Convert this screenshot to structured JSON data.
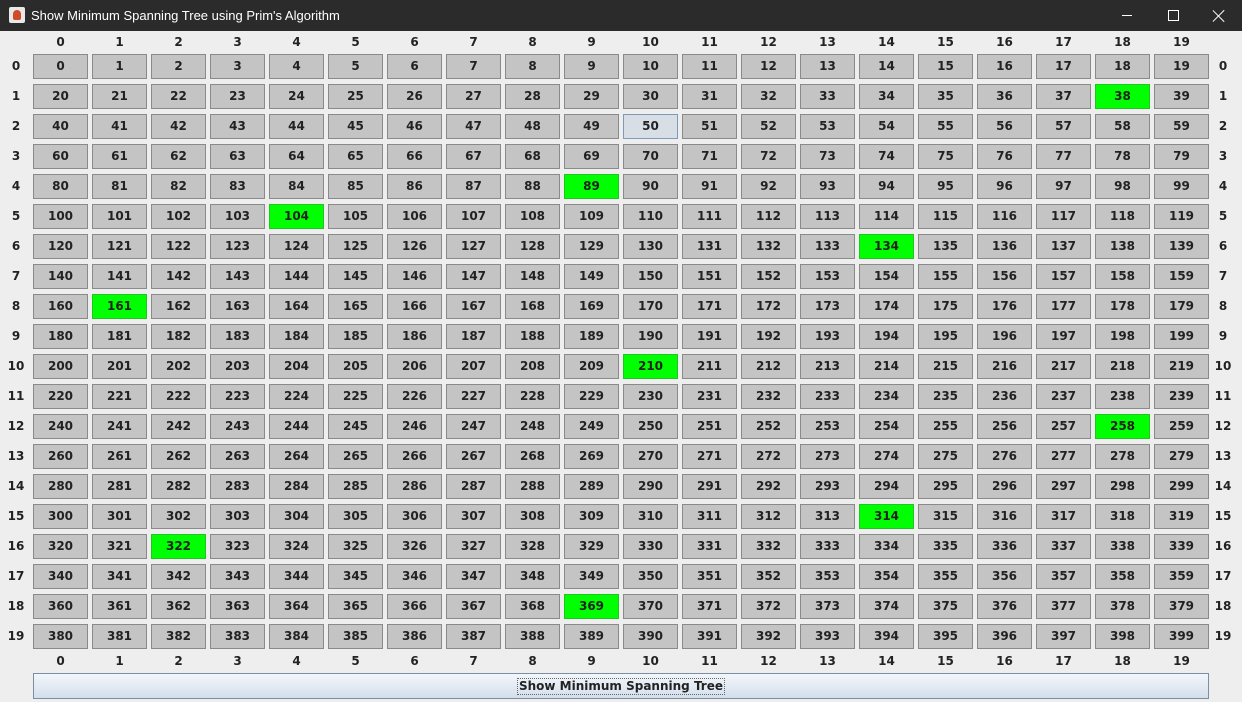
{
  "window": {
    "title": "Show Minimum Spanning Tree using Prim's Algorithm",
    "icon": "java-cup-icon",
    "controls": [
      "minimize",
      "maximize",
      "close"
    ]
  },
  "grid": {
    "rows": 20,
    "cols": 20,
    "column_labels": [
      "0",
      "1",
      "2",
      "3",
      "4",
      "5",
      "6",
      "7",
      "8",
      "9",
      "10",
      "11",
      "12",
      "13",
      "14",
      "15",
      "16",
      "17",
      "18",
      "19"
    ],
    "row_labels": [
      "0",
      "1",
      "2",
      "3",
      "4",
      "5",
      "6",
      "7",
      "8",
      "9",
      "10",
      "11",
      "12",
      "13",
      "14",
      "15",
      "16",
      "17",
      "18",
      "19"
    ],
    "cells": [
      [
        "0",
        "1",
        "2",
        "3",
        "4",
        "5",
        "6",
        "7",
        "8",
        "9",
        "10",
        "11",
        "12",
        "13",
        "14",
        "15",
        "16",
        "17",
        "18",
        "19"
      ],
      [
        "20",
        "21",
        "22",
        "23",
        "24",
        "25",
        "26",
        "27",
        "28",
        "29",
        "30",
        "31",
        "32",
        "33",
        "34",
        "35",
        "36",
        "37",
        "38",
        "39"
      ],
      [
        "40",
        "41",
        "42",
        "43",
        "44",
        "45",
        "46",
        "47",
        "48",
        "49",
        "50",
        "51",
        "52",
        "53",
        "54",
        "55",
        "56",
        "57",
        "58",
        "59"
      ],
      [
        "60",
        "61",
        "62",
        "63",
        "64",
        "65",
        "66",
        "67",
        "68",
        "69",
        "70",
        "71",
        "72",
        "73",
        "74",
        "75",
        "76",
        "77",
        "78",
        "79"
      ],
      [
        "80",
        "81",
        "82",
        "83",
        "84",
        "85",
        "86",
        "87",
        "88",
        "89",
        "90",
        "91",
        "92",
        "93",
        "94",
        "95",
        "96",
        "97",
        "98",
        "99"
      ],
      [
        "100",
        "101",
        "102",
        "103",
        "104",
        "105",
        "106",
        "107",
        "108",
        "109",
        "110",
        "111",
        "112",
        "113",
        "114",
        "115",
        "116",
        "117",
        "118",
        "119"
      ],
      [
        "120",
        "121",
        "122",
        "123",
        "124",
        "125",
        "126",
        "127",
        "128",
        "129",
        "130",
        "131",
        "132",
        "133",
        "134",
        "135",
        "136",
        "137",
        "138",
        "139"
      ],
      [
        "140",
        "141",
        "142",
        "143",
        "144",
        "145",
        "146",
        "147",
        "148",
        "149",
        "150",
        "151",
        "152",
        "153",
        "154",
        "155",
        "156",
        "157",
        "158",
        "159"
      ],
      [
        "160",
        "161",
        "162",
        "163",
        "164",
        "165",
        "166",
        "167",
        "168",
        "169",
        "170",
        "171",
        "172",
        "173",
        "174",
        "175",
        "176",
        "177",
        "178",
        "179"
      ],
      [
        "180",
        "181",
        "182",
        "183",
        "184",
        "185",
        "186",
        "187",
        "188",
        "189",
        "190",
        "191",
        "192",
        "193",
        "194",
        "195",
        "196",
        "197",
        "198",
        "199"
      ],
      [
        "200",
        "201",
        "202",
        "203",
        "204",
        "205",
        "206",
        "207",
        "208",
        "209",
        "210",
        "211",
        "212",
        "213",
        "214",
        "215",
        "216",
        "217",
        "218",
        "219"
      ],
      [
        "220",
        "221",
        "222",
        "223",
        "224",
        "225",
        "226",
        "227",
        "228",
        "229",
        "230",
        "231",
        "232",
        "233",
        "234",
        "235",
        "236",
        "237",
        "238",
        "239"
      ],
      [
        "240",
        "241",
        "242",
        "243",
        "244",
        "245",
        "246",
        "247",
        "248",
        "249",
        "250",
        "251",
        "252",
        "253",
        "254",
        "255",
        "256",
        "257",
        "258",
        "259"
      ],
      [
        "260",
        "261",
        "262",
        "263",
        "264",
        "265",
        "266",
        "267",
        "268",
        "269",
        "270",
        "271",
        "272",
        "273",
        "274",
        "275",
        "276",
        "277",
        "278",
        "279"
      ],
      [
        "280",
        "281",
        "282",
        "283",
        "284",
        "285",
        "286",
        "287",
        "288",
        "289",
        "290",
        "291",
        "292",
        "293",
        "294",
        "295",
        "296",
        "297",
        "298",
        "299"
      ],
      [
        "300",
        "301",
        "302",
        "303",
        "304",
        "305",
        "306",
        "307",
        "308",
        "309",
        "310",
        "311",
        "312",
        "313",
        "314",
        "315",
        "316",
        "317",
        "318",
        "319"
      ],
      [
        "320",
        "321",
        "322",
        "323",
        "324",
        "325",
        "326",
        "327",
        "328",
        "329",
        "330",
        "331",
        "332",
        "333",
        "334",
        "335",
        "336",
        "337",
        "338",
        "339"
      ],
      [
        "340",
        "341",
        "342",
        "343",
        "344",
        "345",
        "346",
        "347",
        "348",
        "349",
        "350",
        "351",
        "352",
        "353",
        "354",
        "355",
        "356",
        "357",
        "358",
        "359"
      ],
      [
        "360",
        "361",
        "362",
        "363",
        "364",
        "365",
        "366",
        "367",
        "368",
        "369",
        "370",
        "371",
        "372",
        "373",
        "374",
        "375",
        "376",
        "377",
        "378",
        "379"
      ],
      [
        "380",
        "381",
        "382",
        "383",
        "384",
        "385",
        "386",
        "387",
        "388",
        "389",
        "390",
        "391",
        "392",
        "393",
        "394",
        "395",
        "396",
        "397",
        "398",
        "399"
      ]
    ],
    "highlighted_cells": [
      "38",
      "89",
      "104",
      "134",
      "161",
      "210",
      "258",
      "314",
      "322",
      "369"
    ],
    "focused_cell": "50",
    "colors": {
      "cell": "#c4c4c4",
      "highlight": "#00ff00",
      "focused": "#d8dee6"
    }
  },
  "button": {
    "label": "Show Minimum Spanning Tree"
  }
}
